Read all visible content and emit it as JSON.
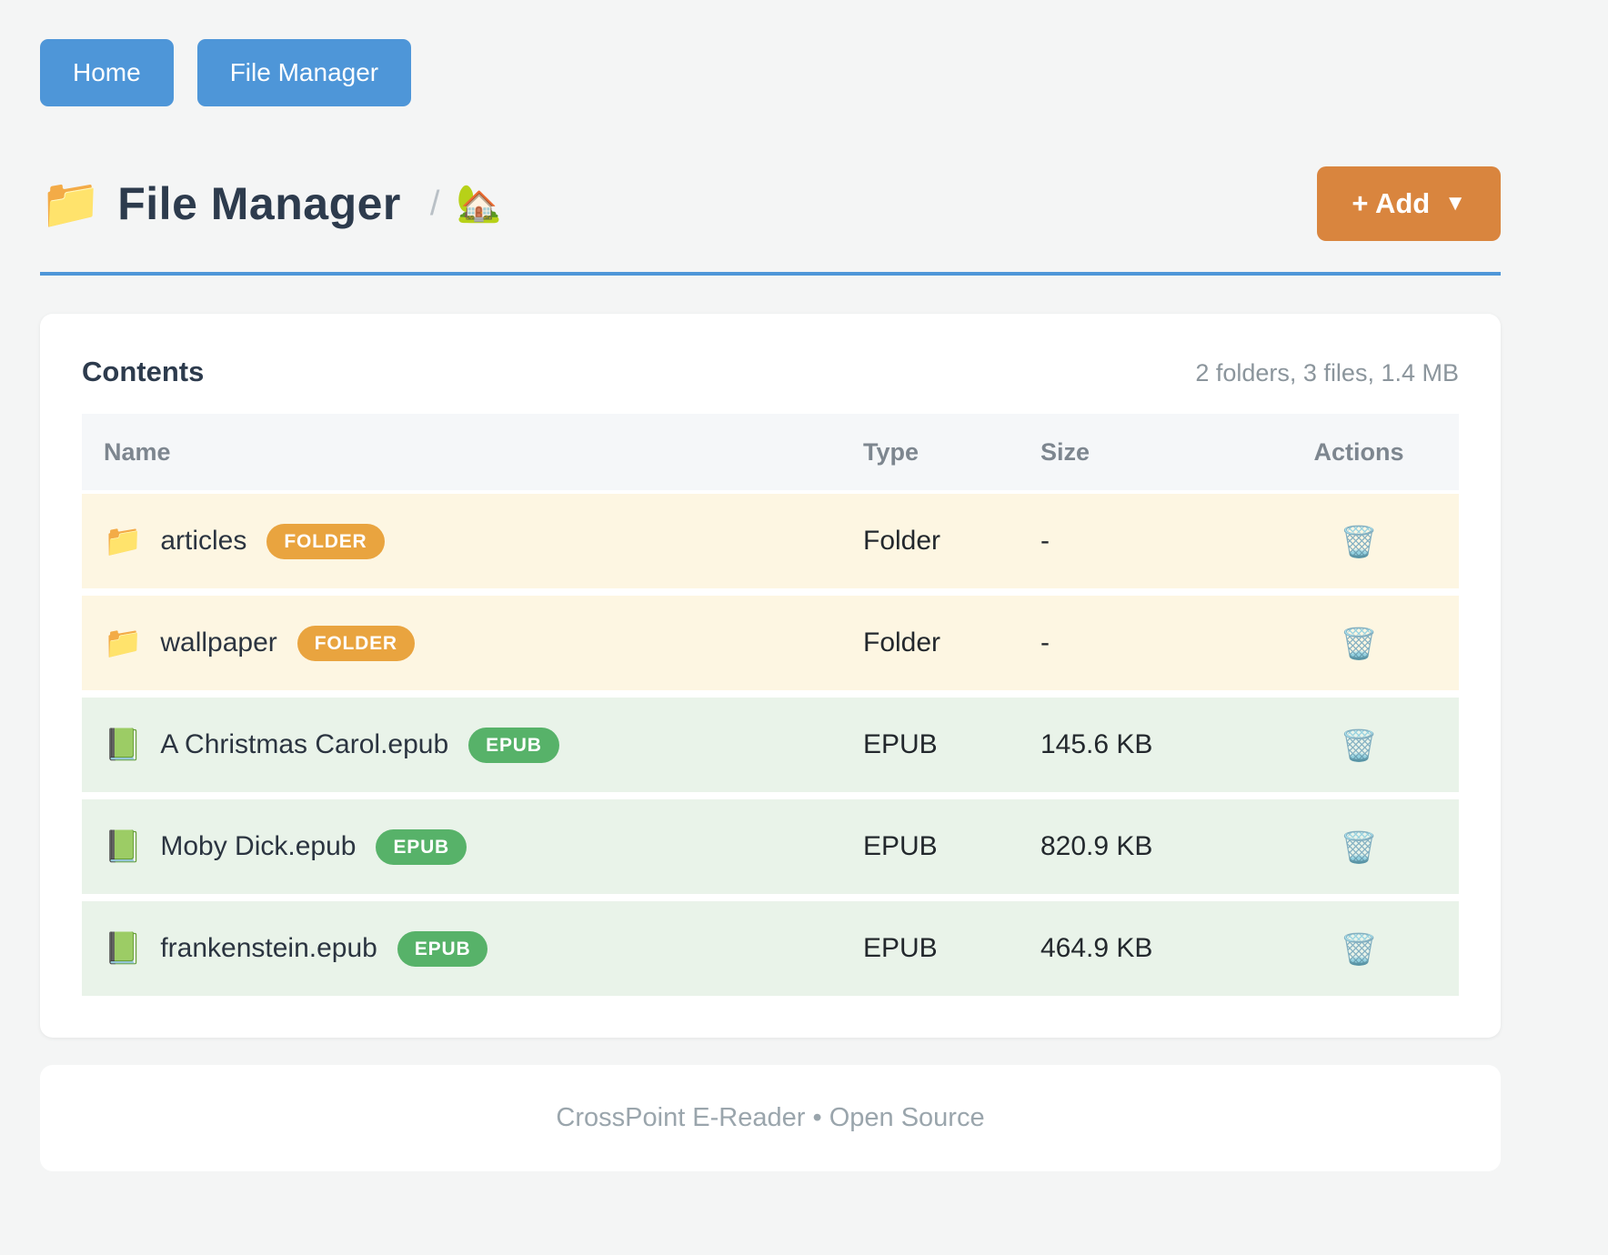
{
  "nav": {
    "home_label": "Home",
    "file_manager_label": "File Manager"
  },
  "header": {
    "folder_icon": "📁",
    "title": "File Manager",
    "breadcrumb_separator": "/",
    "breadcrumb_home_icon": "🏡",
    "add_label": "+ Add",
    "add_caret": "▼"
  },
  "contents": {
    "title": "Contents",
    "summary": "2 folders, 3 files, 1.4 MB",
    "columns": {
      "name": "Name",
      "type": "Type",
      "size": "Size",
      "actions": "Actions"
    },
    "action_icon": "🗑️",
    "rows": [
      {
        "icon": "📁",
        "name": "articles",
        "badge": "FOLDER",
        "type": "Folder",
        "size": "-"
      },
      {
        "icon": "📁",
        "name": "wallpaper",
        "badge": "FOLDER",
        "type": "Folder",
        "size": "-"
      },
      {
        "icon": "📗",
        "name": "A Christmas Carol.epub",
        "badge": "EPUB",
        "type": "EPUB",
        "size": "145.6 KB"
      },
      {
        "icon": "📗",
        "name": "Moby Dick.epub",
        "badge": "EPUB",
        "type": "EPUB",
        "size": "820.9 KB"
      },
      {
        "icon": "📗",
        "name": "frankenstein.epub",
        "badge": "EPUB",
        "type": "EPUB",
        "size": "464.9 KB"
      }
    ]
  },
  "footer": {
    "text": "CrossPoint E-Reader • Open Source"
  },
  "colors": {
    "accent_blue": "#4e96d8",
    "accent_orange": "#d9853e",
    "badge_folder": "#e9a43f",
    "badge_epub": "#57b269",
    "row_folder_bg": "#fdf6e2",
    "row_epub_bg": "#e9f3e9",
    "title_text": "#2d3b4d"
  }
}
